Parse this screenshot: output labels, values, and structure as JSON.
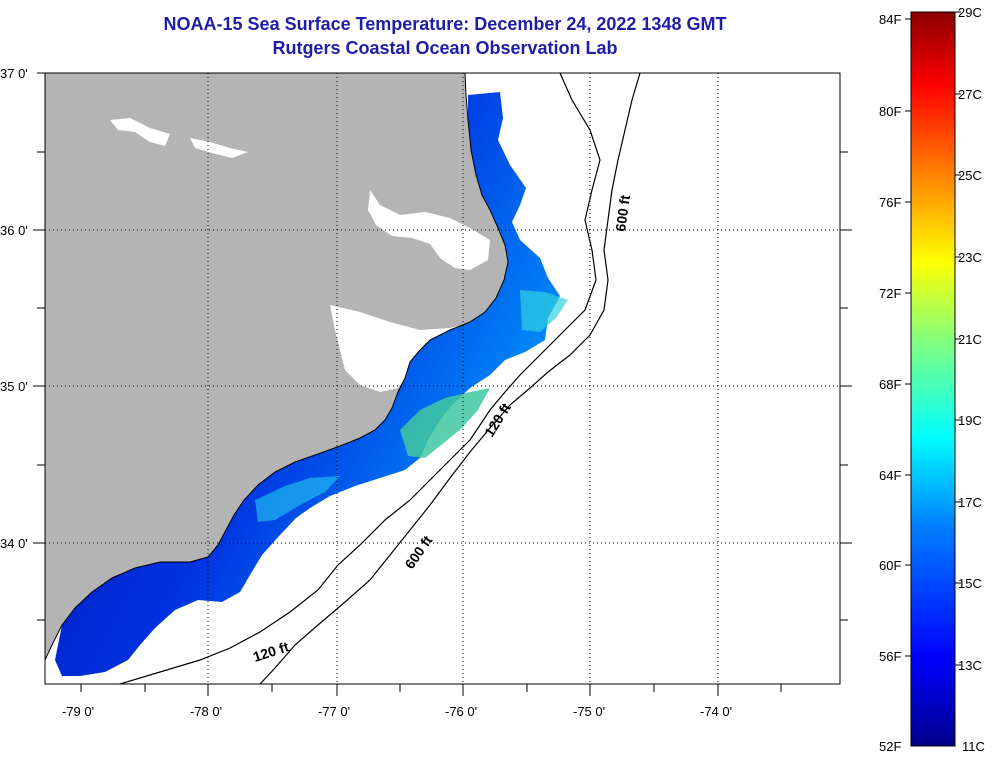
{
  "title": {
    "line1": "NOAA-15 Sea Surface Temperature:  December 24, 2022 1348 GMT",
    "line2": "Rutgers Coastal Ocean Observation Lab"
  },
  "map": {
    "land_color": "#b4b4b4",
    "water_color": "#ffffff",
    "lat_labels": [
      "37 0'",
      "36 0'",
      "35 0'",
      "34 0'"
    ],
    "lon_labels": [
      "-79 0'",
      "-78 0'",
      "-77 0'",
      "-76 0'",
      "-75 0'",
      "-74 0'"
    ],
    "contour_labels": [
      "600 ft",
      "120 ft",
      "600 ft",
      "120 ft"
    ]
  },
  "colorbar": {
    "fahrenheit_labels": [
      "84F",
      "80F",
      "76F",
      "72F",
      "68F",
      "64F",
      "60F",
      "56F",
      "52F"
    ],
    "celsius_labels": [
      "29C",
      "27C",
      "25C",
      "23C",
      "21C",
      "19C",
      "17C",
      "15C",
      "13C",
      "11C"
    ],
    "colors": [
      "#00008c",
      "#0000ff",
      "#0080ff",
      "#00ffff",
      "#80ff80",
      "#ffff00",
      "#ff8000",
      "#ff0000",
      "#8c0000"
    ]
  }
}
